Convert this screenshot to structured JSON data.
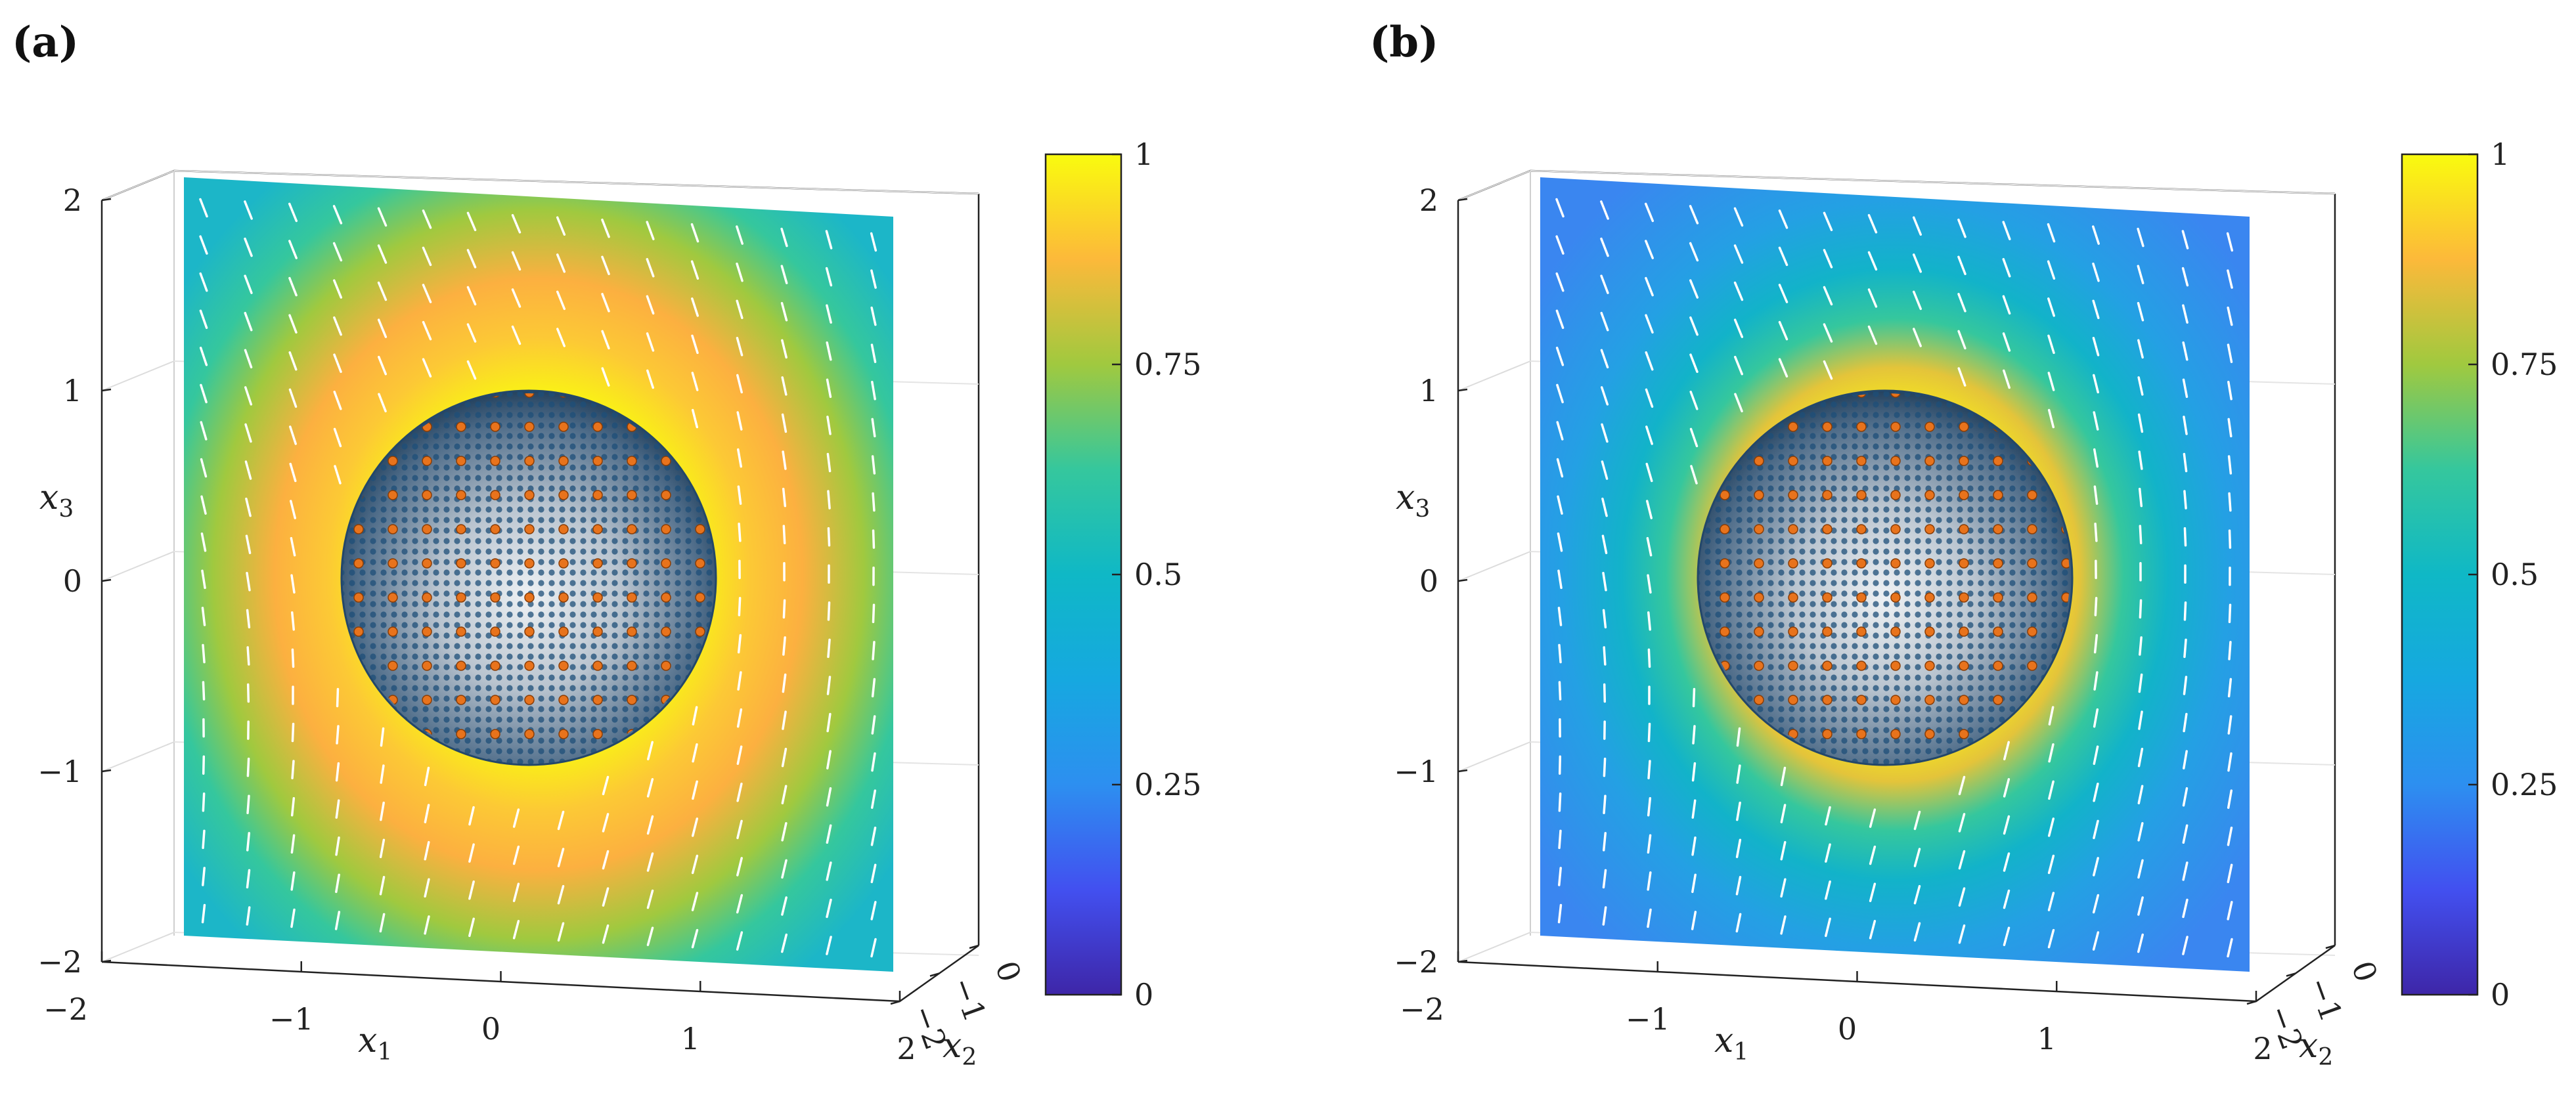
{
  "figure": {
    "panels": [
      {
        "label": "(a)",
        "variant": "a"
      },
      {
        "label": "(b)",
        "variant": "b"
      }
    ],
    "axis_labels": {
      "x1": "x",
      "x1_sub": "1",
      "x2": "x",
      "x2_sub": "2",
      "x3": "x",
      "x3_sub": "3"
    },
    "colormap": [
      "#3e26a8",
      "#4250f0",
      "#2d8ff0",
      "#0fb4c9",
      "#35c79d",
      "#91c84c",
      "#e1b934",
      "#fcc935",
      "#f9fb0e"
    ]
  },
  "chart_data": [
    {
      "type": "surface-3d",
      "panel": "(a)",
      "x1_ticks": [
        "−2",
        "−1",
        "0",
        "1",
        "2"
      ],
      "x2_ticks": [
        "−2",
        "−1",
        "0"
      ],
      "x3_ticks": [
        "−2",
        "−1",
        "0",
        "1",
        "2"
      ],
      "x1_range": [
        -2,
        2
      ],
      "x2_range": [
        -2,
        0
      ],
      "x3_range": [
        -2,
        2
      ],
      "colorbar": {
        "range": [
          0,
          1
        ],
        "ticks": [
          "0",
          "0.25",
          "0.5",
          "0.75",
          "1"
        ]
      },
      "field": {
        "far_value": 0.5,
        "ring_value": 1.0,
        "sphere_radius": 1
      },
      "grid": true
    },
    {
      "type": "surface-3d",
      "panel": "(b)",
      "x1_ticks": [
        "−2",
        "−1",
        "0",
        "1",
        "2"
      ],
      "x2_ticks": [
        "−2",
        "−1",
        "0"
      ],
      "x3_ticks": [
        "−2",
        "−1",
        "0",
        "1",
        "2"
      ],
      "x1_range": [
        -2,
        2
      ],
      "x2_range": [
        -2,
        0
      ],
      "x3_range": [
        -2,
        2
      ],
      "colorbar": {
        "range": [
          0,
          1
        ],
        "ticks": [
          "0",
          "0.25",
          "0.5",
          "0.75",
          "1"
        ]
      },
      "field": {
        "far_value": 0.38,
        "ring_value": 0.95,
        "sphere_radius": 1
      },
      "grid": true
    }
  ]
}
